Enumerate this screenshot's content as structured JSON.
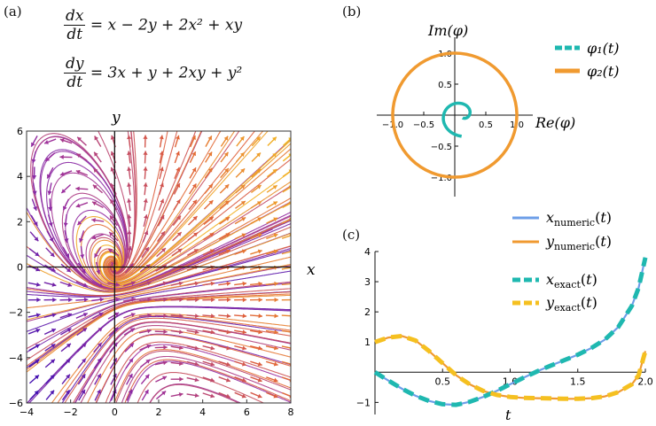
{
  "labels": {
    "a": "(a)",
    "b": "(b)",
    "c": "(c)"
  },
  "equations": [
    {
      "lhs_num": "dx",
      "lhs_den": "dt",
      "rhs": "= x − 2y + 2x² + xy"
    },
    {
      "lhs_num": "dy",
      "lhs_den": "dt",
      "rhs": "= 3x + y + 2xy + y²"
    }
  ],
  "chart_data": [
    {
      "id": "a",
      "type": "vector-field-stream",
      "xlabel": "x",
      "ylabel": "y",
      "xlim": [
        -4,
        8
      ],
      "ylim": [
        -6,
        6
      ],
      "xticks": [
        -4,
        -2,
        0,
        2,
        4,
        6,
        8
      ],
      "yticks": [
        -6,
        -4,
        -2,
        0,
        2,
        4,
        6
      ],
      "field": {
        "dx": "x - 2y + 2x^2 + xy",
        "dy": "3x + y + 2xy + y^2"
      },
      "colors": [
        "#3a0fb4",
        "#9a2fa0",
        "#e0603a",
        "#f5c020"
      ]
    },
    {
      "id": "b",
      "type": "parametric",
      "xlabel": "Re(φ)",
      "ylabel": "Im(φ)",
      "xlim": [
        -1.1,
        1.1
      ],
      "ylim": [
        -1.1,
        1.1
      ],
      "xticks": [
        "−1.0",
        "−0.5",
        "0.5",
        "1.0"
      ],
      "yticks": [
        "1.0",
        "0.5",
        "−0.5",
        "−1.0"
      ],
      "series": [
        {
          "name": "φ₁(t)",
          "color": "#1fb8b0",
          "shape": "spiral"
        },
        {
          "name": "φ₂(t)",
          "color": "#f09a30",
          "shape": "unit-circle"
        }
      ],
      "legend": "top-right"
    },
    {
      "id": "c",
      "type": "line",
      "xlabel": "t",
      "xlim": [
        0,
        2.0
      ],
      "ylim": [
        -1.4,
        4.0
      ],
      "xticks": [
        "0.5",
        "1.0",
        "1.5",
        "2.0"
      ],
      "yticks": [
        "−1",
        "1",
        "2",
        "3",
        "4"
      ],
      "series": [
        {
          "name": "x",
          "sub": "numeric",
          "color": "#6c9ee8",
          "dash": false,
          "t": [
            0,
            0.1,
            0.2,
            0.3,
            0.4,
            0.5,
            0.6,
            0.7,
            0.8,
            0.9,
            1.0,
            1.1,
            1.2,
            1.3,
            1.4,
            1.5,
            1.6,
            1.7,
            1.8,
            1.9,
            1.95,
            2.0
          ],
          "v": [
            0,
            -0.28,
            -0.55,
            -0.78,
            -0.95,
            -1.06,
            -1.08,
            -0.98,
            -0.82,
            -0.62,
            -0.4,
            -0.18,
            0.03,
            0.22,
            0.4,
            0.58,
            0.8,
            1.08,
            1.5,
            2.2,
            2.8,
            3.8
          ]
        },
        {
          "name": "y",
          "sub": "numeric",
          "color": "#f09a30",
          "dash": false,
          "t": [
            0,
            0.1,
            0.2,
            0.3,
            0.4,
            0.5,
            0.6,
            0.7,
            0.8,
            0.9,
            1.0,
            1.1,
            1.2,
            1.3,
            1.4,
            1.5,
            1.6,
            1.7,
            1.8,
            1.9,
            1.95,
            2.0
          ],
          "v": [
            1.0,
            1.15,
            1.2,
            1.05,
            0.7,
            0.3,
            -0.1,
            -0.4,
            -0.62,
            -0.75,
            -0.82,
            -0.85,
            -0.86,
            -0.87,
            -0.88,
            -0.88,
            -0.86,
            -0.8,
            -0.66,
            -0.4,
            -0.1,
            0.7
          ]
        },
        {
          "name": "x",
          "sub": "exact",
          "color": "#1fb8b0",
          "dash": true,
          "t": [
            0,
            0.1,
            0.2,
            0.3,
            0.4,
            0.5,
            0.6,
            0.7,
            0.8,
            0.9,
            1.0,
            1.1,
            1.2,
            1.3,
            1.4,
            1.5,
            1.6,
            1.7,
            1.8,
            1.9,
            1.95,
            2.0
          ],
          "v": [
            0,
            -0.28,
            -0.55,
            -0.78,
            -0.95,
            -1.06,
            -1.08,
            -0.98,
            -0.82,
            -0.62,
            -0.4,
            -0.18,
            0.03,
            0.22,
            0.4,
            0.58,
            0.8,
            1.08,
            1.5,
            2.2,
            2.8,
            3.8
          ]
        },
        {
          "name": "y",
          "sub": "exact",
          "color": "#f5c020",
          "dash": true,
          "t": [
            0,
            0.1,
            0.2,
            0.3,
            0.4,
            0.5,
            0.6,
            0.7,
            0.8,
            0.9,
            1.0,
            1.1,
            1.2,
            1.3,
            1.4,
            1.5,
            1.6,
            1.7,
            1.8,
            1.9,
            1.95,
            2.0
          ],
          "v": [
            1.0,
            1.15,
            1.2,
            1.05,
            0.7,
            0.3,
            -0.1,
            -0.4,
            -0.62,
            -0.75,
            -0.82,
            -0.85,
            -0.86,
            -0.87,
            -0.88,
            -0.88,
            -0.86,
            -0.8,
            -0.66,
            -0.4,
            -0.1,
            0.7
          ]
        }
      ],
      "legend": "top-right"
    }
  ]
}
